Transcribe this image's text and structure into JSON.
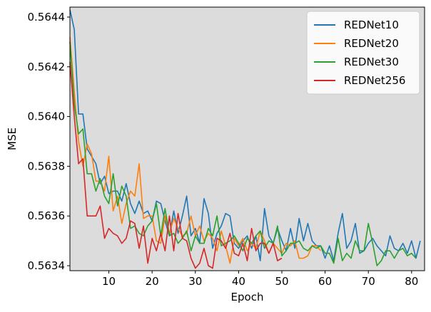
{
  "chart_data": {
    "type": "line",
    "xlabel": "Epoch",
    "ylabel": "MSE",
    "xlim": [
      1,
      83
    ],
    "ylim": [
      0.56338,
      0.56444
    ],
    "xticks": [
      10,
      20,
      30,
      40,
      50,
      60,
      70,
      80
    ],
    "yticks": [
      0.5634,
      0.5636,
      0.5638,
      0.564,
      0.5642,
      0.5644
    ],
    "xtick_labels": [
      "10",
      "20",
      "30",
      "40",
      "50",
      "60",
      "70",
      "80"
    ],
    "ytick_labels": [
      "0.5634",
      "0.5636",
      "0.5638",
      "0.5640",
      "0.5642",
      "0.5644"
    ],
    "grid": false,
    "plot_background": "#dcdcdc",
    "legend_position": "upper right",
    "series": [
      {
        "name": "REDNet10",
        "color": "#1f77b4",
        "x_start": 1,
        "values": [
          0.56443,
          0.56435,
          0.56401,
          0.56401,
          0.56387,
          0.56384,
          0.56381,
          0.56373,
          0.56376,
          0.56369,
          0.5637,
          0.5637,
          0.56366,
          0.56373,
          0.56365,
          0.56361,
          0.56366,
          0.56361,
          0.56362,
          0.56358,
          0.56366,
          0.56365,
          0.56358,
          0.56352,
          0.56362,
          0.56353,
          0.5636,
          0.56368,
          0.56352,
          0.56355,
          0.56349,
          0.56367,
          0.56361,
          0.56347,
          0.56353,
          0.56356,
          0.56361,
          0.5636,
          0.56349,
          0.56347,
          0.5635,
          0.56352,
          0.56347,
          0.56352,
          0.56342,
          0.56363,
          0.56352,
          0.56349,
          0.56355,
          0.5635,
          0.56346,
          0.56355,
          0.56347,
          0.56359,
          0.5635,
          0.56357,
          0.5635,
          0.56348,
          0.56348,
          0.56343,
          0.56348,
          0.56342,
          0.56353,
          0.56361,
          0.56347,
          0.5635,
          0.56357,
          0.56345,
          0.56346,
          0.56349,
          0.56351,
          0.56348,
          0.56346,
          0.56344,
          0.56352,
          0.56347,
          0.56346,
          0.56349,
          0.56345,
          0.5635,
          0.56343,
          0.5635
        ]
      },
      {
        "name": "REDNet20",
        "color": "#ff7f0e",
        "x_start": 1,
        "values": [
          0.56432,
          0.5641,
          0.5639,
          0.5638,
          0.56389,
          0.56385,
          0.56374,
          0.56374,
          0.5637,
          0.56384,
          0.56362,
          0.56368,
          0.56357,
          0.56365,
          0.5637,
          0.56368,
          0.56381,
          0.56359,
          0.5636,
          0.5636,
          0.5635,
          0.56349,
          0.5636,
          0.56353,
          0.56359,
          0.56355,
          0.56352,
          0.56353,
          0.5636,
          0.56352,
          0.56356,
          0.5635,
          0.56353,
          0.56351,
          0.56346,
          0.56354,
          0.56348,
          0.56341,
          0.56351,
          0.56348,
          0.56351,
          0.56346,
          0.56349,
          0.56347,
          0.56354,
          0.5635,
          0.56345,
          0.56349,
          0.56347,
          0.56345,
          0.56349,
          0.56348,
          0.5635,
          0.56343,
          0.56343,
          0.56344,
          0.56348,
          0.56348,
          0.56346
        ]
      },
      {
        "name": "REDNet30",
        "color": "#2ca02c",
        "x_start": 1,
        "values": [
          0.5643,
          0.56405,
          0.56393,
          0.56395,
          0.56377,
          0.56377,
          0.5637,
          0.56375,
          0.56368,
          0.56365,
          0.56377,
          0.56364,
          0.56372,
          0.56368,
          0.56355,
          0.56356,
          0.56353,
          0.56352,
          0.56356,
          0.56358,
          0.56365,
          0.56352,
          0.56363,
          0.56352,
          0.56353,
          0.56349,
          0.56351,
          0.56354,
          0.56346,
          0.56352,
          0.56349,
          0.56349,
          0.56355,
          0.56352,
          0.5636,
          0.56348,
          0.56349,
          0.5635,
          0.56352,
          0.56349,
          0.56346,
          0.56351,
          0.56349,
          0.56352,
          0.56354,
          0.56347,
          0.5635,
          0.56349,
          0.56356,
          0.56344,
          0.56346,
          0.56349,
          0.56349,
          0.5635,
          0.56347,
          0.56346,
          0.56348,
          0.56347,
          0.56348,
          0.56345,
          0.56345,
          0.56341,
          0.56351,
          0.56342,
          0.56345,
          0.56343,
          0.5635,
          0.56346,
          0.56346,
          0.56357,
          0.56349,
          0.5634,
          0.56342,
          0.56346,
          0.56346,
          0.56343,
          0.56346,
          0.56347,
          0.56344,
          0.56345,
          0.56343
        ]
      },
      {
        "name": "REDNet256",
        "color": "#d62728",
        "x_start": 1,
        "values": [
          0.56422,
          0.564,
          0.56381,
          0.56383,
          0.5636,
          0.5636,
          0.5636,
          0.56364,
          0.56351,
          0.56355,
          0.56353,
          0.56352,
          0.56349,
          0.56351,
          0.56358,
          0.56357,
          0.56347,
          0.56356,
          0.56341,
          0.56351,
          0.56346,
          0.56353,
          0.56346,
          0.5636,
          0.56346,
          0.56361,
          0.56351,
          0.5635,
          0.56343,
          0.56339,
          0.56341,
          0.56347,
          0.5634,
          0.56339,
          0.56351,
          0.5635,
          0.56347,
          0.56353,
          0.56345,
          0.56344,
          0.56349,
          0.56342,
          0.56355,
          0.56346,
          0.56349,
          0.56349,
          0.56345,
          0.56349,
          0.56342,
          0.56343
        ]
      }
    ]
  }
}
